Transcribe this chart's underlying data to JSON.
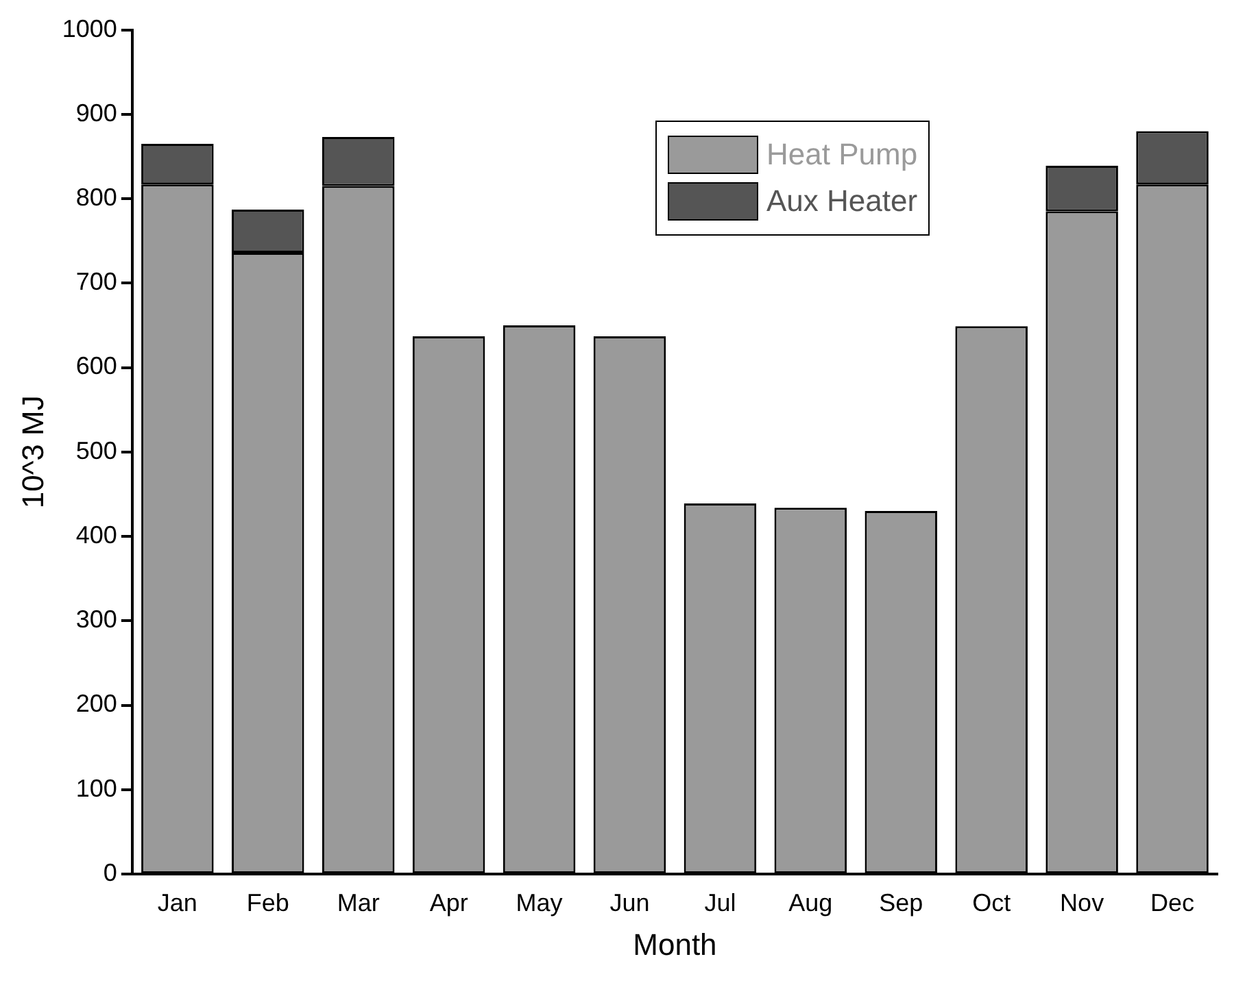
{
  "chart_data": {
    "type": "bar",
    "stacked": true,
    "xlabel": "Month",
    "ylabel": "10^3 MJ",
    "categories": [
      "Jan",
      "Feb",
      "Mar",
      "Apr",
      "May",
      "Jun",
      "Jul",
      "Aug",
      "Sep",
      "Oct",
      "Nov",
      "Dec"
    ],
    "series": [
      {
        "name": "Heat Pump",
        "color": "#9a9a9a",
        "values": [
          817,
          736,
          815,
          637,
          650,
          637,
          439,
          434,
          430,
          649,
          785,
          817
        ]
      },
      {
        "name": "Aux Heater",
        "color": "#555555",
        "values": [
          48,
          51,
          58,
          null,
          null,
          null,
          null,
          null,
          null,
          null,
          54,
          63
        ]
      }
    ],
    "ylim": [
      0,
      1000
    ],
    "yticks": [
      0,
      100,
      200,
      300,
      400,
      500,
      600,
      700,
      800,
      900,
      1000
    ],
    "grid": false,
    "legend": "top right"
  }
}
